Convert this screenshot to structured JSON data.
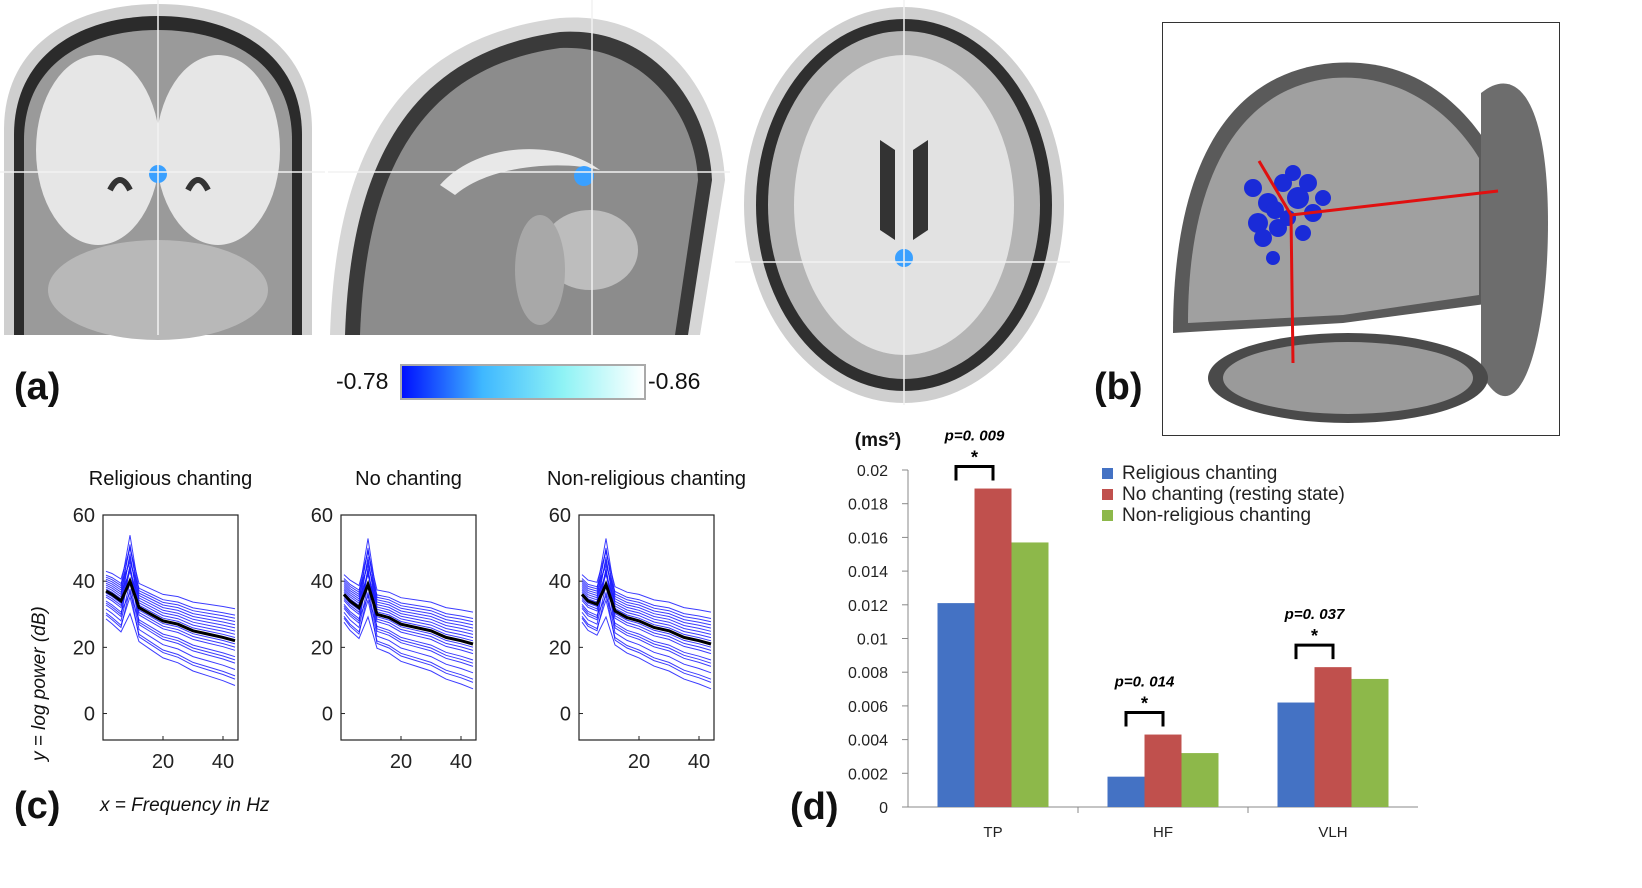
{
  "figure": {
    "panel_labels": {
      "a": "(a)",
      "b": "(b)",
      "c": "(c)",
      "d": "(d)"
    }
  },
  "panel_a": {
    "colorbar": {
      "min_label": "-0.78",
      "max_label": "-0.86",
      "colors": [
        "#0010ff",
        "#3fb8ff",
        "#8ff3f5",
        "#ffffff"
      ]
    }
  },
  "panel_c": {
    "x_note": "x = Frequency in Hz",
    "y_note": "y = log power (dB)",
    "curve_color": "#1a1aff",
    "mean_color": "#000000",
    "chart_data": [
      {
        "type": "line",
        "title": "Religious chanting",
        "xticks": [
          "20",
          "40"
        ],
        "yticks": [
          "0",
          "20",
          "40",
          "60"
        ],
        "xlim": [
          0,
          45
        ],
        "ylim": [
          -8,
          60
        ],
        "mean_series": {
          "x": [
            1,
            3,
            6,
            9,
            12,
            16,
            20,
            25,
            30,
            35,
            40,
            44
          ],
          "y": [
            37,
            36,
            34,
            40,
            32,
            30,
            28,
            27,
            25,
            24,
            23,
            22
          ]
        }
      },
      {
        "type": "line",
        "title": "No chanting",
        "xticks": [
          "20",
          "40"
        ],
        "yticks": [
          "0",
          "20",
          "40",
          "60"
        ],
        "xlim": [
          0,
          45
        ],
        "ylim": [
          -8,
          60
        ],
        "mean_series": {
          "x": [
            1,
            3,
            6,
            9,
            12,
            16,
            20,
            25,
            30,
            35,
            40,
            44
          ],
          "y": [
            36,
            34,
            32,
            39,
            30,
            29,
            27,
            26,
            25,
            23,
            22,
            21
          ]
        }
      },
      {
        "type": "line",
        "title": "Non-religious chanting",
        "xticks": [
          "20",
          "40"
        ],
        "yticks": [
          "0",
          "20",
          "40",
          "60"
        ],
        "xlim": [
          0,
          45
        ],
        "ylim": [
          -8,
          60
        ],
        "mean_series": {
          "x": [
            1,
            3,
            6,
            9,
            12,
            16,
            20,
            25,
            30,
            35,
            40,
            44
          ],
          "y": [
            36,
            34,
            33,
            39,
            31,
            29,
            28,
            26,
            25,
            23,
            22,
            21
          ]
        }
      }
    ]
  },
  "panel_d": {
    "chart_data": {
      "type": "bar",
      "unit_label": "(ms²)",
      "categories": [
        "TP",
        "HF",
        "VLH"
      ],
      "series": [
        {
          "name": "Religious chanting",
          "values": [
            0.0121,
            0.0018,
            0.0062
          ],
          "color": "#4472c4"
        },
        {
          "name": "No chanting (resting state)",
          "values": [
            0.0189,
            0.0043,
            0.0083
          ],
          "color": "#c0504d"
        },
        {
          "name": "Non-religious chanting",
          "values": [
            0.0157,
            0.0032,
            0.0076
          ],
          "color": "#8db84a"
        }
      ],
      "ylim": [
        0,
        0.02
      ],
      "yticks": [
        "0",
        "0.002",
        "0.004",
        "0.006",
        "0.008",
        "0.01",
        "0.012",
        "0.014",
        "0.016",
        "0.018",
        "0.02"
      ],
      "annotations": [
        {
          "category": "TP",
          "text": "p=0. 009",
          "star": "*"
        },
        {
          "category": "HF",
          "text": "p=0. 014",
          "star": "*"
        },
        {
          "category": "VLH",
          "text": "p=0. 037",
          "star": "*"
        }
      ],
      "legend_position": "top-right"
    }
  }
}
